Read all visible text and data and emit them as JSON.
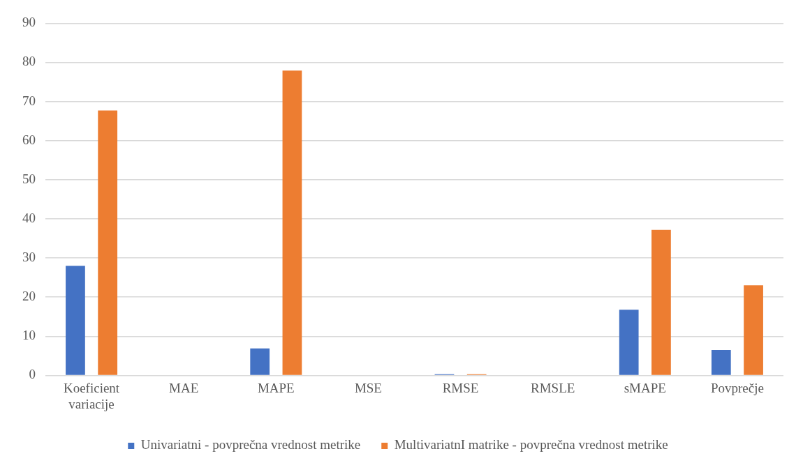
{
  "chart_data": {
    "type": "bar",
    "categories": [
      "Koeficient\nvariacije",
      "MAE",
      "MAPE",
      "MSE",
      "RMSE",
      "RMSLE",
      "sMAPE",
      "Povprečje"
    ],
    "series": [
      {
        "name": "Univariatni - povprečna vrednost metrike",
        "color": "#4472c4",
        "values": [
          28,
          0,
          6.9,
          0,
          0.3,
          0,
          16.8,
          6.5
        ]
      },
      {
        "name": "MultivariatnI matrike - povprečna vrednost metrike",
        "color": "#ed7d31",
        "values": [
          67.7,
          0,
          77.9,
          0,
          0.3,
          0,
          37.2,
          23
        ]
      }
    ],
    "ylim": [
      0,
      90
    ],
    "yticks": [
      0,
      10,
      20,
      30,
      40,
      50,
      60,
      70,
      80,
      90
    ],
    "grid": "y",
    "legend": "bottom"
  }
}
